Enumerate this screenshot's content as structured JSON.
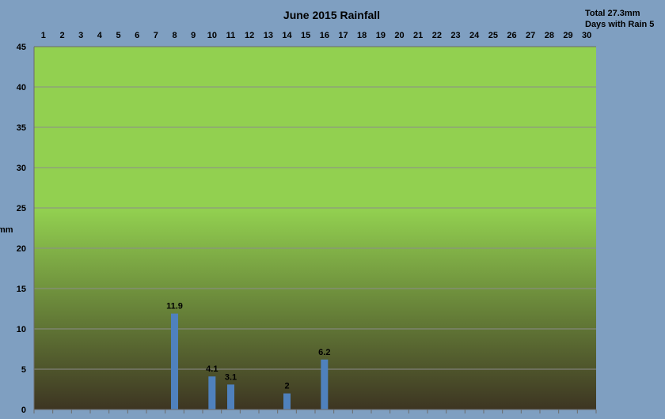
{
  "summary": {
    "total_text": "Total 27.3mm",
    "rain_days_text": "Days with Rain 5"
  },
  "chart_data": {
    "type": "bar",
    "title": "June 2015 Rainfall",
    "xlabel": "",
    "ylabel": "mm",
    "categories": [
      "1",
      "2",
      "3",
      "4",
      "5",
      "6",
      "7",
      "8",
      "9",
      "10",
      "11",
      "12",
      "13",
      "14",
      "15",
      "16",
      "17",
      "18",
      "19",
      "20",
      "21",
      "22",
      "23",
      "24",
      "25",
      "26",
      "27",
      "28",
      "29",
      "30"
    ],
    "values": [
      0,
      0,
      0,
      0,
      0,
      0,
      0,
      11.9,
      0,
      4.1,
      3.1,
      0,
      0,
      2,
      0,
      6.2,
      0,
      0,
      0,
      0,
      0,
      0,
      0,
      0,
      0,
      0,
      0,
      0,
      0,
      0
    ],
    "value_labels": [
      "",
      "",
      "",
      "",
      "",
      "",
      "",
      "11.9",
      "",
      "4.1",
      "3.1",
      "",
      "",
      "2",
      "",
      "6.2",
      "",
      "",
      "",
      "",
      "",
      "",
      "",
      "",
      "",
      "",
      "",
      "",
      "",
      ""
    ],
    "ylim": [
      0,
      45
    ],
    "yticks": [
      "0",
      "5",
      "10",
      "15",
      "20",
      "25",
      "30",
      "35",
      "40",
      "45"
    ],
    "x_axis_position": "top",
    "grid": true,
    "legend": "none",
    "colors": {
      "background": "#7f9fc1",
      "plot_top": "#92d050",
      "plot_bottom": "#3d3522",
      "bar": "#4f81bd",
      "gridline": "#8c8c8c"
    }
  }
}
